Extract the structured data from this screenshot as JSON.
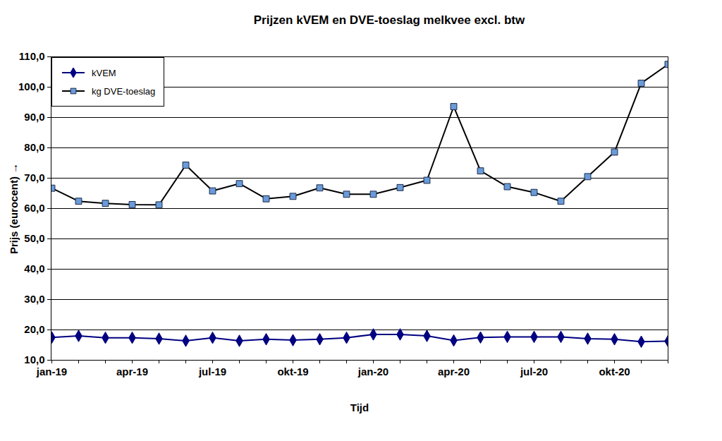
{
  "chart_data": {
    "type": "line",
    "title": "Prijzen kVEM en DVE-toeslag melkvee excl. btw",
    "x_label": "Tijd",
    "y_label": "Prijs (eurocent)",
    "categories": [
      "jan-19",
      null,
      null,
      "apr-19",
      null,
      null,
      "jul-19",
      null,
      null,
      "okt-19",
      null,
      null,
      "jan-20",
      null,
      null,
      "apr-20",
      null,
      null,
      "jul-20",
      null,
      null,
      "okt-20",
      null,
      null
    ],
    "series": [
      {
        "name": "kVEM",
        "color": "#000080",
        "marker": "diamond",
        "values": [
          17.5,
          18.0,
          17.4,
          17.4,
          17.1,
          16.4,
          17.4,
          16.4,
          16.9,
          16.6,
          16.9,
          17.4,
          18.5,
          18.5,
          18.0,
          16.5,
          17.5,
          17.7,
          17.7,
          17.7,
          17.1,
          16.9,
          16.1,
          16.3
        ]
      },
      {
        "name": "kg DVE-toeslag",
        "color": "#000000",
        "marker": "square",
        "values": [
          66.7,
          62.4,
          61.7,
          61.3,
          61.2,
          74.3,
          65.8,
          68.2,
          63.2,
          64.0,
          66.8,
          64.7,
          64.7,
          66.9,
          69.3,
          93.6,
          72.4,
          67.2,
          65.3,
          62.4,
          70.5,
          78.6,
          101.3,
          107.5
        ]
      }
    ],
    "ylim": [
      10,
      110
    ],
    "yticks": [
      {
        "value": 10,
        "label": "10,0"
      },
      {
        "value": 20,
        "label": "20,0"
      },
      {
        "value": 30,
        "label": "30,0"
      },
      {
        "value": 40,
        "label": "40,0"
      },
      {
        "value": 50,
        "label": "50,0"
      },
      {
        "value": 60,
        "label": "60,0"
      },
      {
        "value": 70,
        "label": "70,0"
      },
      {
        "value": 80,
        "label": "80,0"
      },
      {
        "value": 90,
        "label": "90,0"
      },
      {
        "value": 100,
        "label": "100,0"
      },
      {
        "value": 110,
        "label": "110,0"
      }
    ],
    "grid": true,
    "legend": "top-left"
  }
}
